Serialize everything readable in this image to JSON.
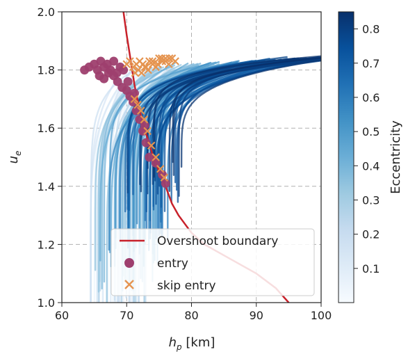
{
  "chart_data": {
    "type": "line",
    "xlabel_main": "h",
    "xlabel_sub": "p",
    "xlabel_unit": " [km]",
    "ylabel_main": "u",
    "ylabel_sub": "e",
    "xlim": [
      60,
      100
    ],
    "ylim": [
      1.0,
      2.0
    ],
    "xticks": [
      "60",
      "70",
      "80",
      "90",
      "100"
    ],
    "yticks": [
      "1.0",
      "1.2",
      "1.4",
      "1.6",
      "1.8",
      "2.0"
    ],
    "grid": true,
    "grid_style": "dashed",
    "colorbar": {
      "label": "Eccentricity",
      "colormap": "Blues",
      "range": [
        0.0,
        0.85
      ],
      "ticks": [
        "0.1",
        "0.2",
        "0.3",
        "0.4",
        "0.5",
        "0.6",
        "0.7",
        "0.8"
      ]
    },
    "legend": {
      "placement": "lower-right",
      "entries": [
        "Overshoot boundary",
        "entry",
        "skip entry"
      ]
    },
    "colors": {
      "boundary": "#c8212a",
      "entry": "#9e3f6e",
      "skip_entry": "#e59450"
    },
    "overshoot_boundary": {
      "x": [
        69.5,
        70.0,
        70.5,
        71.2,
        72.0,
        73.0,
        74.0,
        75.0,
        76.0,
        77.0,
        78.0,
        80.0,
        82.0,
        86.0,
        90.0,
        93.0,
        95.0
      ],
      "y": [
        2.0,
        1.92,
        1.85,
        1.75,
        1.66,
        1.58,
        1.51,
        1.45,
        1.4,
        1.34,
        1.3,
        1.24,
        1.2,
        1.15,
        1.1,
        1.05,
        1.0
      ]
    },
    "entry": {
      "x": [
        63.5,
        64.2,
        65.0,
        65.5,
        66.0,
        66.5,
        67.0,
        67.5,
        68.0,
        68.5,
        69.0,
        69.5,
        65.8,
        66.5,
        67.2,
        68.0,
        68.6,
        69.3,
        70.0,
        70.5,
        71.0,
        71.5,
        72.0,
        72.5,
        73.0,
        73.5,
        74.5,
        75.5,
        76.0,
        70.2,
        71.2,
        72.8
      ],
      "y": [
        1.8,
        1.81,
        1.82,
        1.8,
        1.83,
        1.81,
        1.82,
        1.8,
        1.83,
        1.79,
        1.81,
        1.8,
        1.78,
        1.77,
        1.79,
        1.78,
        1.76,
        1.74,
        1.73,
        1.71,
        1.69,
        1.66,
        1.63,
        1.59,
        1.55,
        1.5,
        1.48,
        1.44,
        1.41,
        1.76,
        1.72,
        1.61
      ]
    },
    "skip_entry": {
      "x": [
        70.0,
        70.5,
        71.0,
        71.5,
        72.0,
        72.5,
        73.0,
        73.5,
        74.0,
        74.5,
        75.0,
        75.5,
        76.0,
        76.5,
        77.0,
        77.5,
        71.3,
        71.8,
        72.3,
        72.8,
        73.3,
        74.0,
        74.8,
        75.4,
        76.0,
        76.6,
        71.2,
        71.7,
        72.2,
        72.7,
        73.2,
        73.8,
        74.5,
        75.2,
        75.8
      ],
      "y": [
        1.82,
        1.83,
        1.81,
        1.82,
        1.83,
        1.82,
        1.81,
        1.83,
        1.82,
        1.81,
        1.84,
        1.83,
        1.84,
        1.82,
        1.84,
        1.83,
        1.79,
        1.8,
        1.79,
        1.81,
        1.8,
        1.83,
        1.82,
        1.84,
        1.83,
        1.84,
        1.7,
        1.68,
        1.66,
        1.63,
        1.59,
        1.54,
        1.5,
        1.46,
        1.43
      ]
    },
    "trajectories_note_removed": true
  },
  "legend_labels": {
    "boundary": "Overshoot boundary",
    "entry": "entry",
    "skip": "skip entry"
  }
}
